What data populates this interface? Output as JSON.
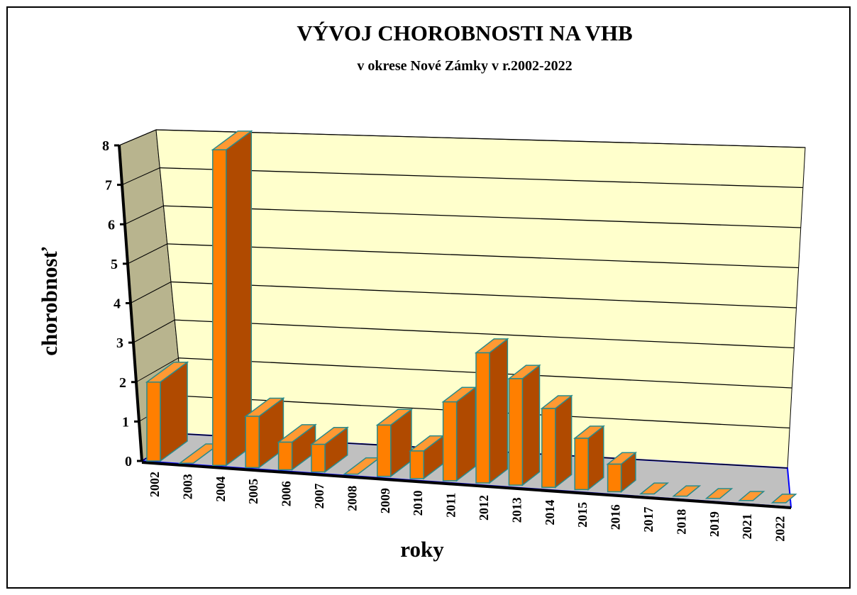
{
  "chart_data": {
    "type": "bar3d",
    "title": "VÝVOJ CHOROBNOSTI NA VHB",
    "subtitle": "v okrese Nové Zámky v r.2002-2022",
    "x_label": "roky",
    "y_label": "chorobnosť",
    "categories": [
      "2002",
      "2003",
      "2004",
      "2005",
      "2006",
      "2007",
      "2008",
      "2009",
      "2010",
      "2011",
      "2012",
      "2013",
      "2014",
      "2015",
      "2016",
      "2017",
      "2018",
      "2019",
      "2021",
      "2022"
    ],
    "values": [
      2,
      0,
      8,
      1.3,
      0.7,
      0.7,
      0,
      1.3,
      0.7,
      2,
      3.3,
      2.7,
      2,
      1.3,
      0.7,
      0,
      0,
      0,
      0,
      0
    ],
    "color": "#ff7f00",
    "ylim": [
      0,
      8
    ],
    "yticks": [
      0,
      1,
      2,
      3,
      4,
      5,
      6,
      7,
      8
    ],
    "grid": true
  }
}
